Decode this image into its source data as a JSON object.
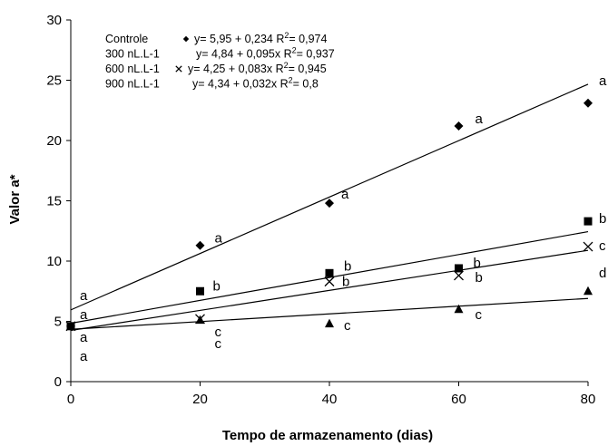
{
  "chart_data": {
    "type": "scatter",
    "xlabel": "Tempo de armazenamento (dias)",
    "ylabel": "Valor a*",
    "xlim": [
      0,
      80
    ],
    "ylim": [
      0,
      30
    ],
    "x_ticks": [
      "0",
      "20",
      "40",
      "60",
      "80"
    ],
    "y_ticks": [
      "0",
      "5",
      "10",
      "15",
      "20",
      "25",
      "30"
    ],
    "grid": false,
    "legend_position": "top-left",
    "x": [
      0,
      20,
      40,
      60,
      80
    ],
    "series": [
      {
        "name": "Controle",
        "marker": "diamond",
        "equation": "y= 5,95 +  0,234 R",
        "r2": "= 0,974",
        "values": [
          4.6,
          11.3,
          14.8,
          21.2,
          23.1
        ],
        "letters": [
          "a",
          "a",
          "a",
          "a",
          "a"
        ],
        "fit": {
          "intercept": 5.95,
          "slope": 0.234
        }
      },
      {
        "name": "300 nL.L-1",
        "marker": "square",
        "equation": "y= 4,84 + 0,095x  R",
        "r2": "= 0,937",
        "values": [
          4.6,
          7.5,
          9.0,
          9.4,
          13.3
        ],
        "letters": [
          "a",
          "b",
          "b",
          "b",
          "b"
        ],
        "fit": {
          "intercept": 4.84,
          "slope": 0.095
        }
      },
      {
        "name": "600 nL.L-1",
        "marker": "cross",
        "equation": "y= 4,25 + 0,083x R",
        "r2": "= 0,945",
        "values": [
          4.6,
          5.2,
          8.3,
          8.8,
          11.2
        ],
        "letters": [
          "a",
          "c",
          "b",
          "b",
          "c"
        ],
        "fit": {
          "intercept": 4.25,
          "slope": 0.083
        }
      },
      {
        "name": "900 nL.L-1",
        "marker": "triangle",
        "equation": "y= 4,34 + 0,032x R",
        "r2": "= 0,8",
        "values": [
          4.6,
          5.1,
          4.8,
          6.0,
          7.5
        ],
        "letters": [
          "a",
          "c",
          "c",
          "c",
          "d"
        ],
        "fit": {
          "intercept": 4.34,
          "slope": 0.032
        }
      }
    ]
  }
}
